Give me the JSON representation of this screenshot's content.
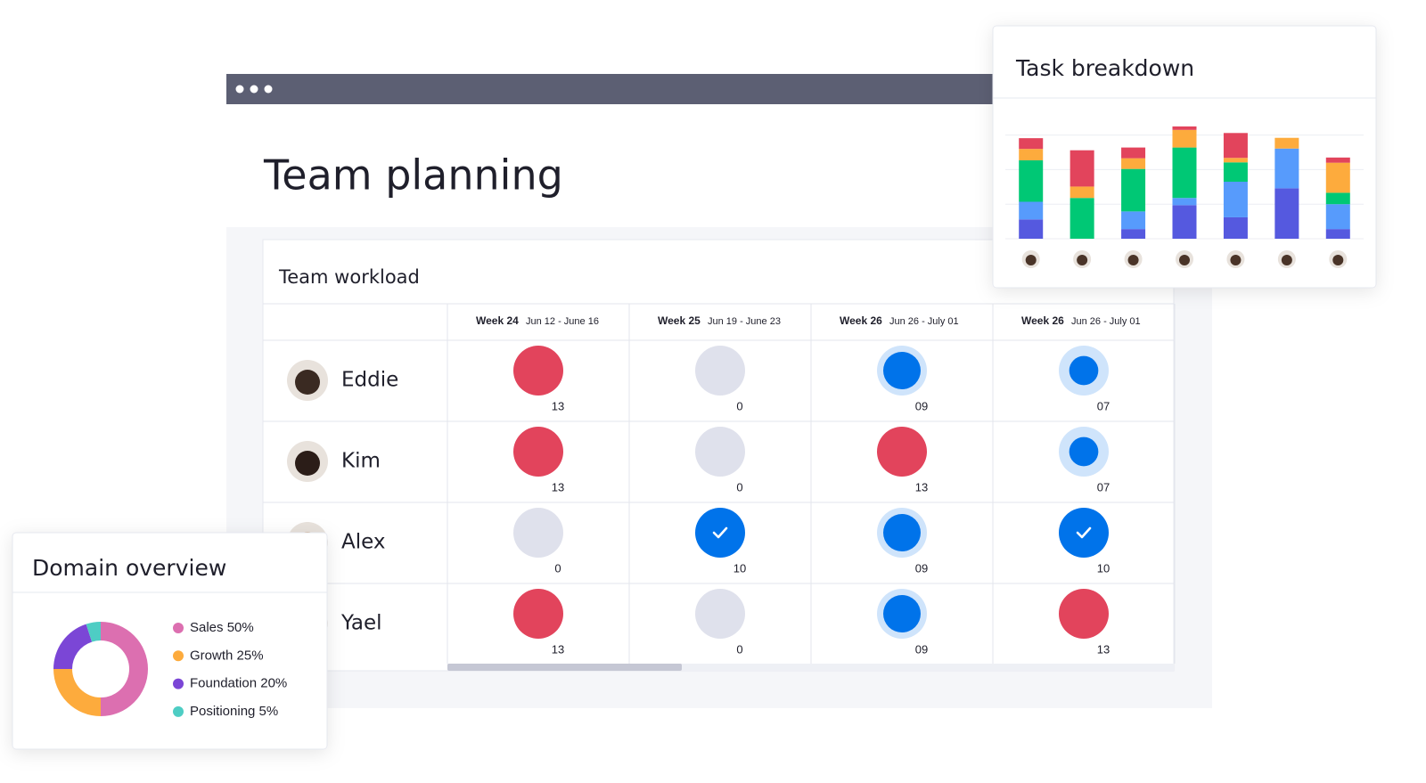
{
  "title": "Team planning",
  "workload": {
    "title": "Team workload",
    "columns": [
      {
        "week": "Week 24",
        "dates": "Jun 12 - June 16"
      },
      {
        "week": "Week 25",
        "dates": "Jun 19 - June 23"
      },
      {
        "week": "Week 26",
        "dates": "Jun 26 - July 01"
      },
      {
        "week": "Week 26",
        "dates": "Jun 26 - July 01"
      }
    ],
    "rows": [
      {
        "name": "Eddie",
        "cells": [
          "13",
          "0",
          "09",
          "07"
        ]
      },
      {
        "name": "Kim",
        "cells": [
          "13",
          "0",
          "13",
          "07"
        ]
      },
      {
        "name": "Alex",
        "cells": [
          "0",
          "10",
          "09",
          "10"
        ]
      },
      {
        "name": "Yael",
        "cells": [
          "13",
          "0",
          "09",
          "13"
        ]
      }
    ]
  },
  "task_breakdown": {
    "type": "bar",
    "title": "Task breakdown",
    "stacked": true,
    "grid": true,
    "categories": [
      null,
      null,
      null,
      null,
      null,
      null,
      null
    ],
    "ylim": [
      0,
      3.3
    ],
    "yticks": [
      0,
      1,
      2,
      3
    ],
    "series": [
      {
        "color": "#5559df",
        "values": [
          0.56,
          0,
          0.28,
          0.97,
          0.62,
          1.46,
          0.28
        ]
      },
      {
        "color": "#579bfc",
        "values": [
          0.51,
          0,
          0.51,
          0.21,
          1.03,
          1.15,
          0.72
        ]
      },
      {
        "color": "#00c875",
        "values": [
          1.2,
          1.18,
          1.23,
          1.46,
          0.56,
          0,
          0.33
        ]
      },
      {
        "color": "#fdab3d",
        "values": [
          0.33,
          0.33,
          0.31,
          0.51,
          0.13,
          0.31,
          0.87
        ]
      },
      {
        "color": "#e2445c",
        "values": [
          0.31,
          1.05,
          0.31,
          0.1,
          0.72,
          0,
          0.15
        ]
      }
    ]
  },
  "domain_overview": {
    "type": "pie",
    "title": "Domain overview",
    "categories": [
      "Sales 50%",
      "Growth 25%",
      "Foundation 20%",
      "Positioning 5%"
    ],
    "values": [
      50,
      25,
      20,
      5
    ],
    "colors": [
      "#dc6fb0",
      "#fdab3d",
      "#7b46d6",
      "#4ecdc4"
    ]
  }
}
